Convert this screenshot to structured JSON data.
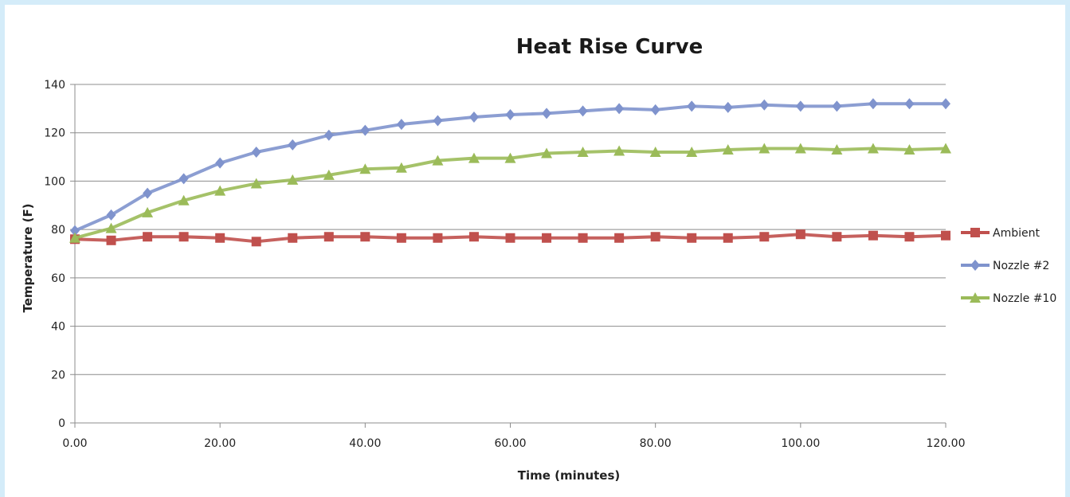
{
  "chart_data": {
    "type": "line",
    "title": "Heat Rise Curve",
    "xlabel": "Time (minutes)",
    "ylabel": "Temperature (F)",
    "xlim": [
      0,
      120
    ],
    "ylim": [
      0,
      140
    ],
    "x_ticks": [
      "0.00",
      "20.00",
      "40.00",
      "60.00",
      "80.00",
      "100.00",
      "120.00"
    ],
    "y_ticks": [
      "0",
      "20",
      "40",
      "60",
      "80",
      "100",
      "120",
      "140"
    ],
    "grid": "horizontal",
    "legend_position": "right",
    "x": [
      0,
      5,
      10,
      15,
      20,
      25,
      30,
      35,
      40,
      45,
      50,
      55,
      60,
      65,
      70,
      75,
      80,
      85,
      90,
      95,
      100,
      105,
      110,
      115,
      120
    ],
    "series": [
      {
        "name": "Ambient",
        "color": "#c0504d",
        "marker": "square",
        "values": [
          76,
          75.5,
          77,
          77,
          76.5,
          75,
          76.5,
          77,
          77,
          76.5,
          76.5,
          77,
          76.5,
          76.5,
          76.5,
          76.5,
          77,
          76.5,
          76.5,
          77,
          78,
          77,
          77.5,
          77,
          77.5
        ]
      },
      {
        "name": "Nozzle #2",
        "color": "#7f93cd",
        "marker": "diamond",
        "values": [
          79.5,
          86,
          95,
          101,
          107.5,
          112,
          115,
          119,
          121,
          123.5,
          125,
          126.5,
          127.5,
          128,
          129,
          130,
          129.5,
          131,
          130.5,
          131.5,
          131,
          131,
          132,
          132,
          132
        ]
      },
      {
        "name": "Nozzle #10",
        "color": "#9bbb59",
        "marker": "triangle",
        "values": [
          76.5,
          80.5,
          87,
          92,
          96,
          99,
          100.5,
          102.5,
          105,
          105.5,
          108.5,
          109.5,
          109.5,
          111.5,
          112,
          112.5,
          112,
          112,
          113,
          113.5,
          113.5,
          113,
          113.5,
          113,
          113.5
        ]
      }
    ]
  }
}
